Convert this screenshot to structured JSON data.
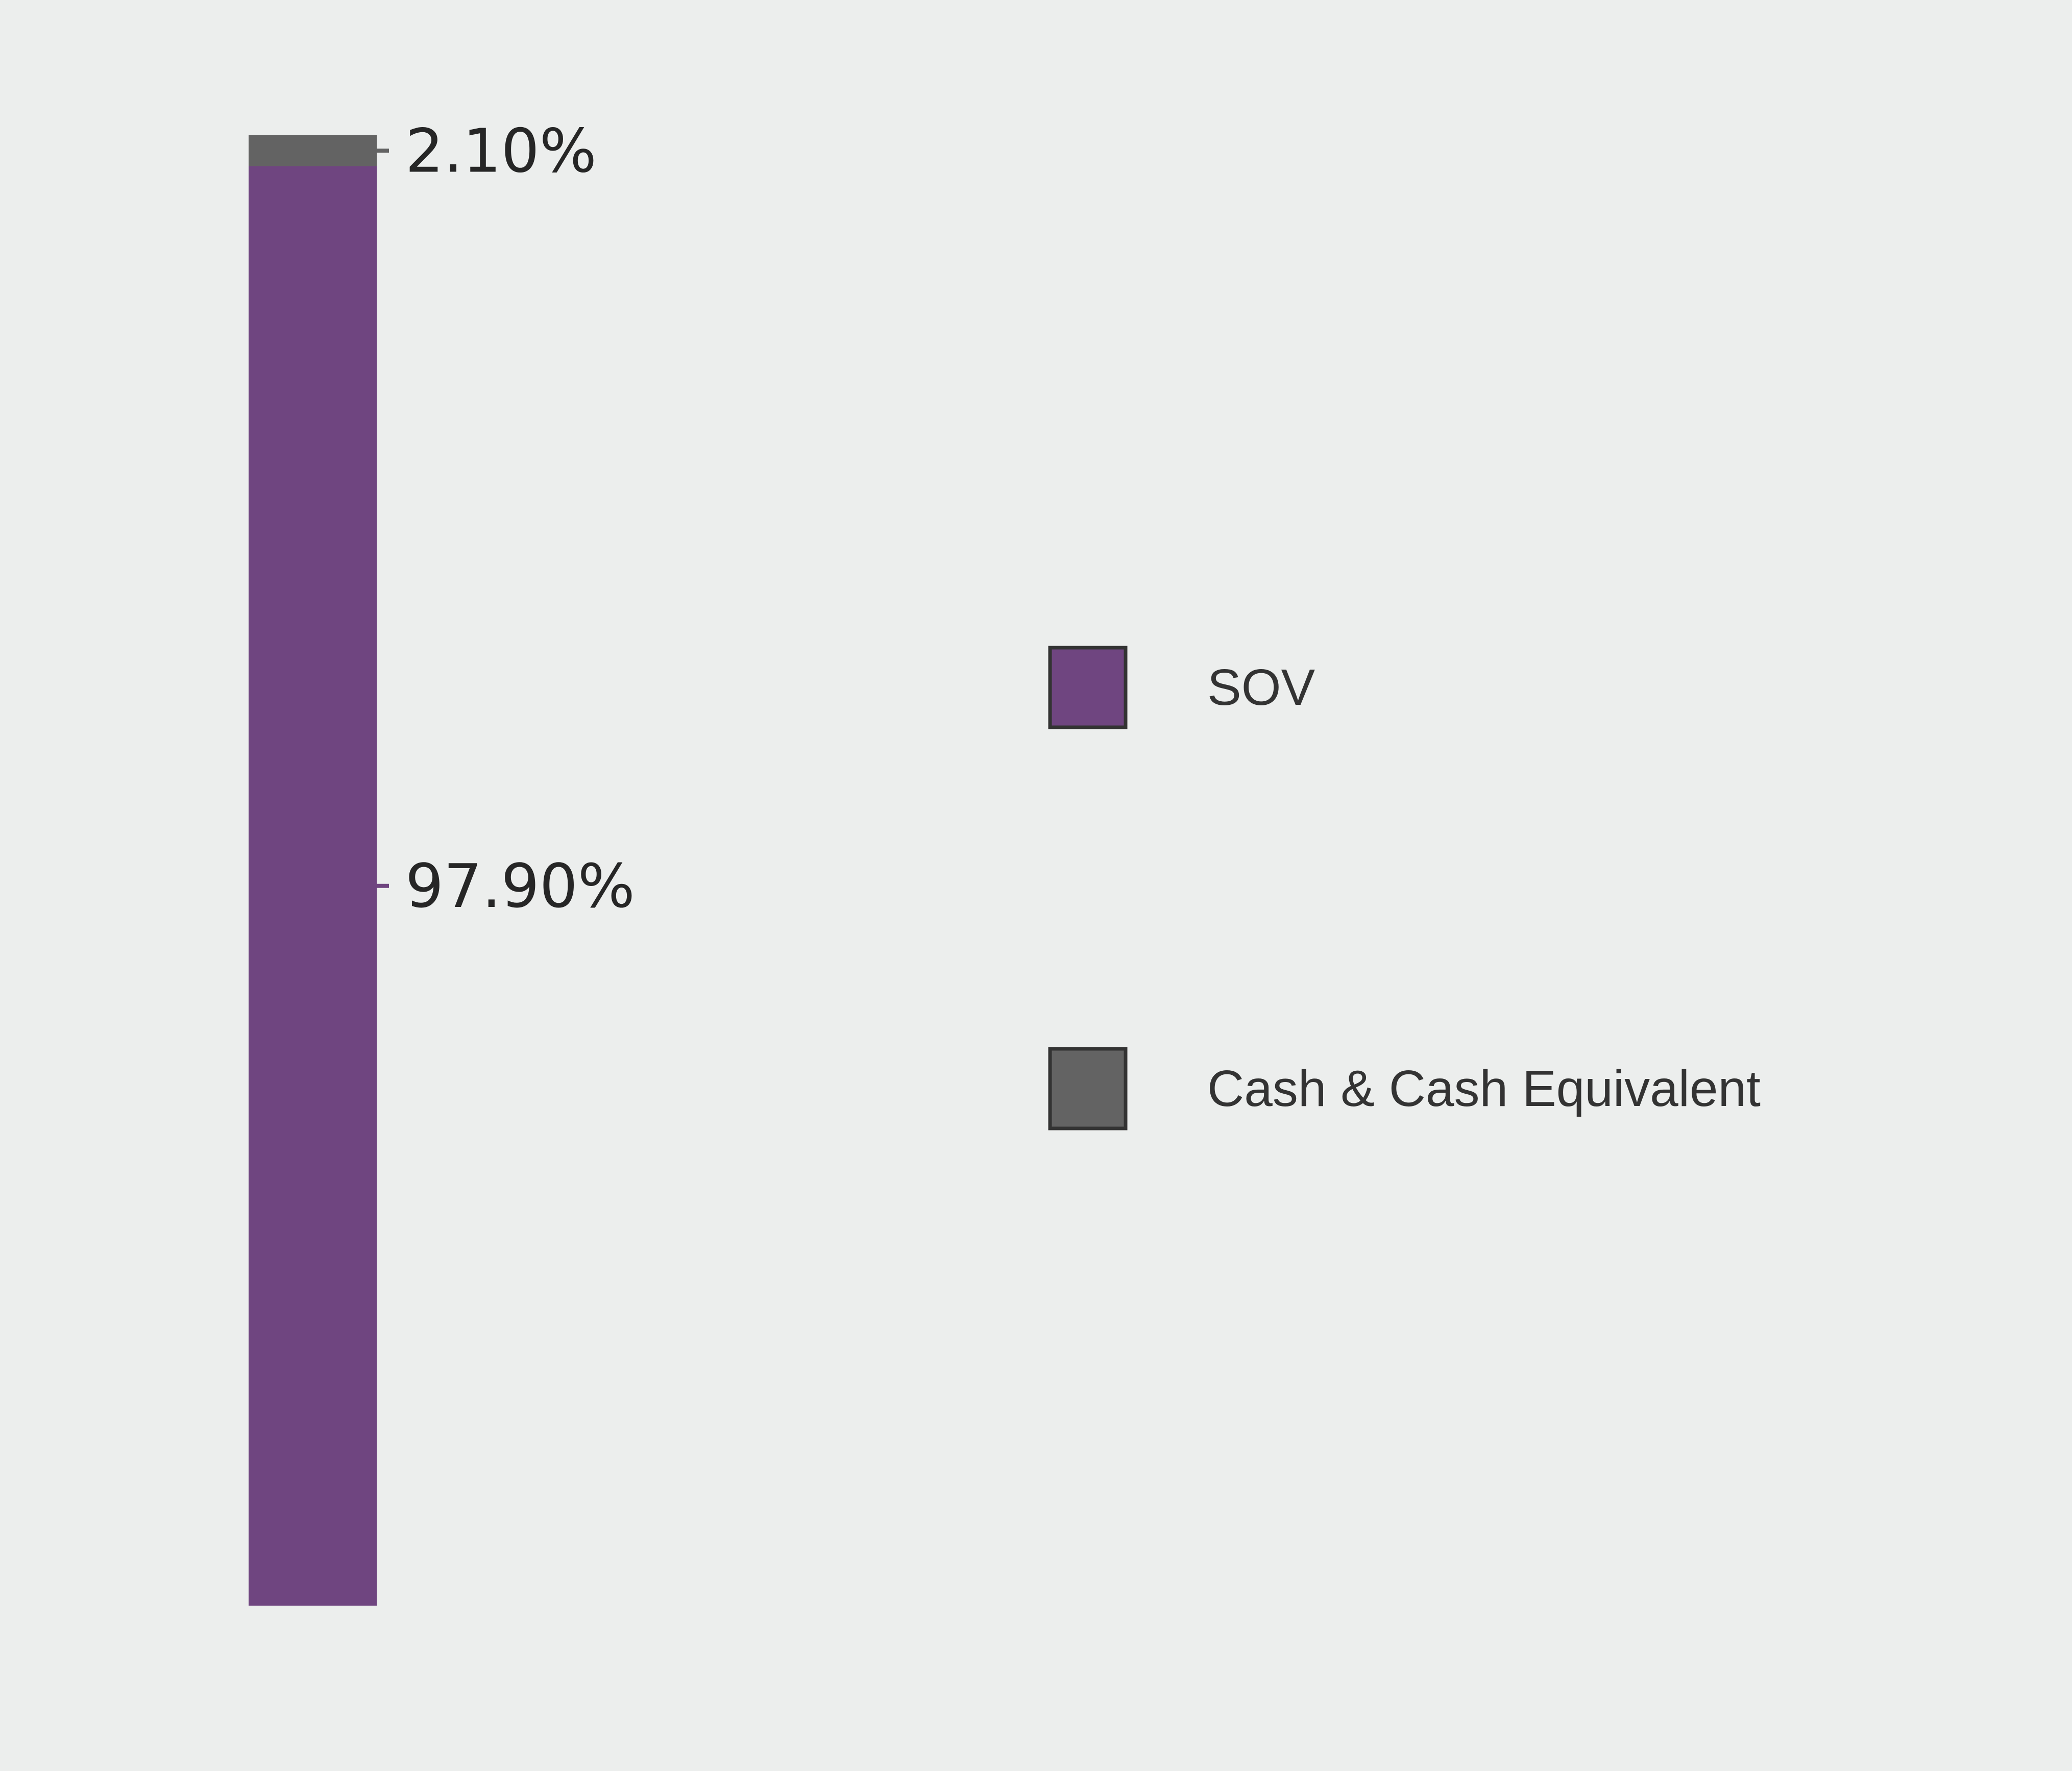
{
  "chart_data": {
    "type": "bar",
    "stacked": true,
    "orientation": "vertical",
    "categories": [
      ""
    ],
    "series": [
      {
        "name": "SOV",
        "values": [
          97.9
        ],
        "label": "97.90%",
        "color": "#6f4580"
      },
      {
        "name": "Cash & Cash Equivalent",
        "values": [
          2.1
        ],
        "label": "2.10%",
        "color": "#636363"
      }
    ],
    "ylim": [
      0,
      100
    ],
    "grid": false,
    "legend_position": "right",
    "legend": [
      {
        "label": "SOV",
        "color": "#6f4580"
      },
      {
        "label": "Cash & Cash Equivalent",
        "color": "#636363"
      }
    ],
    "background_color": "#eceeed"
  }
}
